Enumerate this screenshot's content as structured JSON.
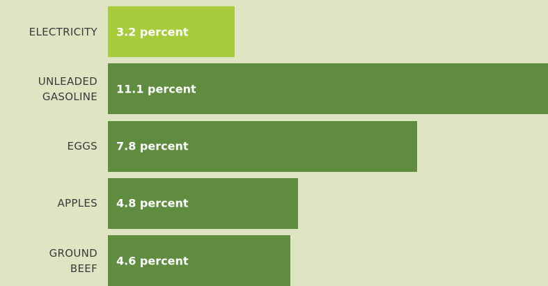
{
  "chart_data": {
    "type": "bar",
    "orientation": "horizontal",
    "categories": [
      "ELECTRICITY",
      "UNLEADED GASOLINE",
      "EGGS",
      "APPLES",
      "GROUND BEEF"
    ],
    "values": [
      3.2,
      11.1,
      7.8,
      4.8,
      4.6
    ],
    "value_labels": [
      "3.2 percent",
      "11.1 percent",
      "7.8 percent",
      "4.8 percent",
      "4.6 percent"
    ],
    "colors": [
      "#a6cb3b",
      "#5f8c3e",
      "#5f8c3e",
      "#5f8c3e",
      "#5f8c3e"
    ]
  }
}
